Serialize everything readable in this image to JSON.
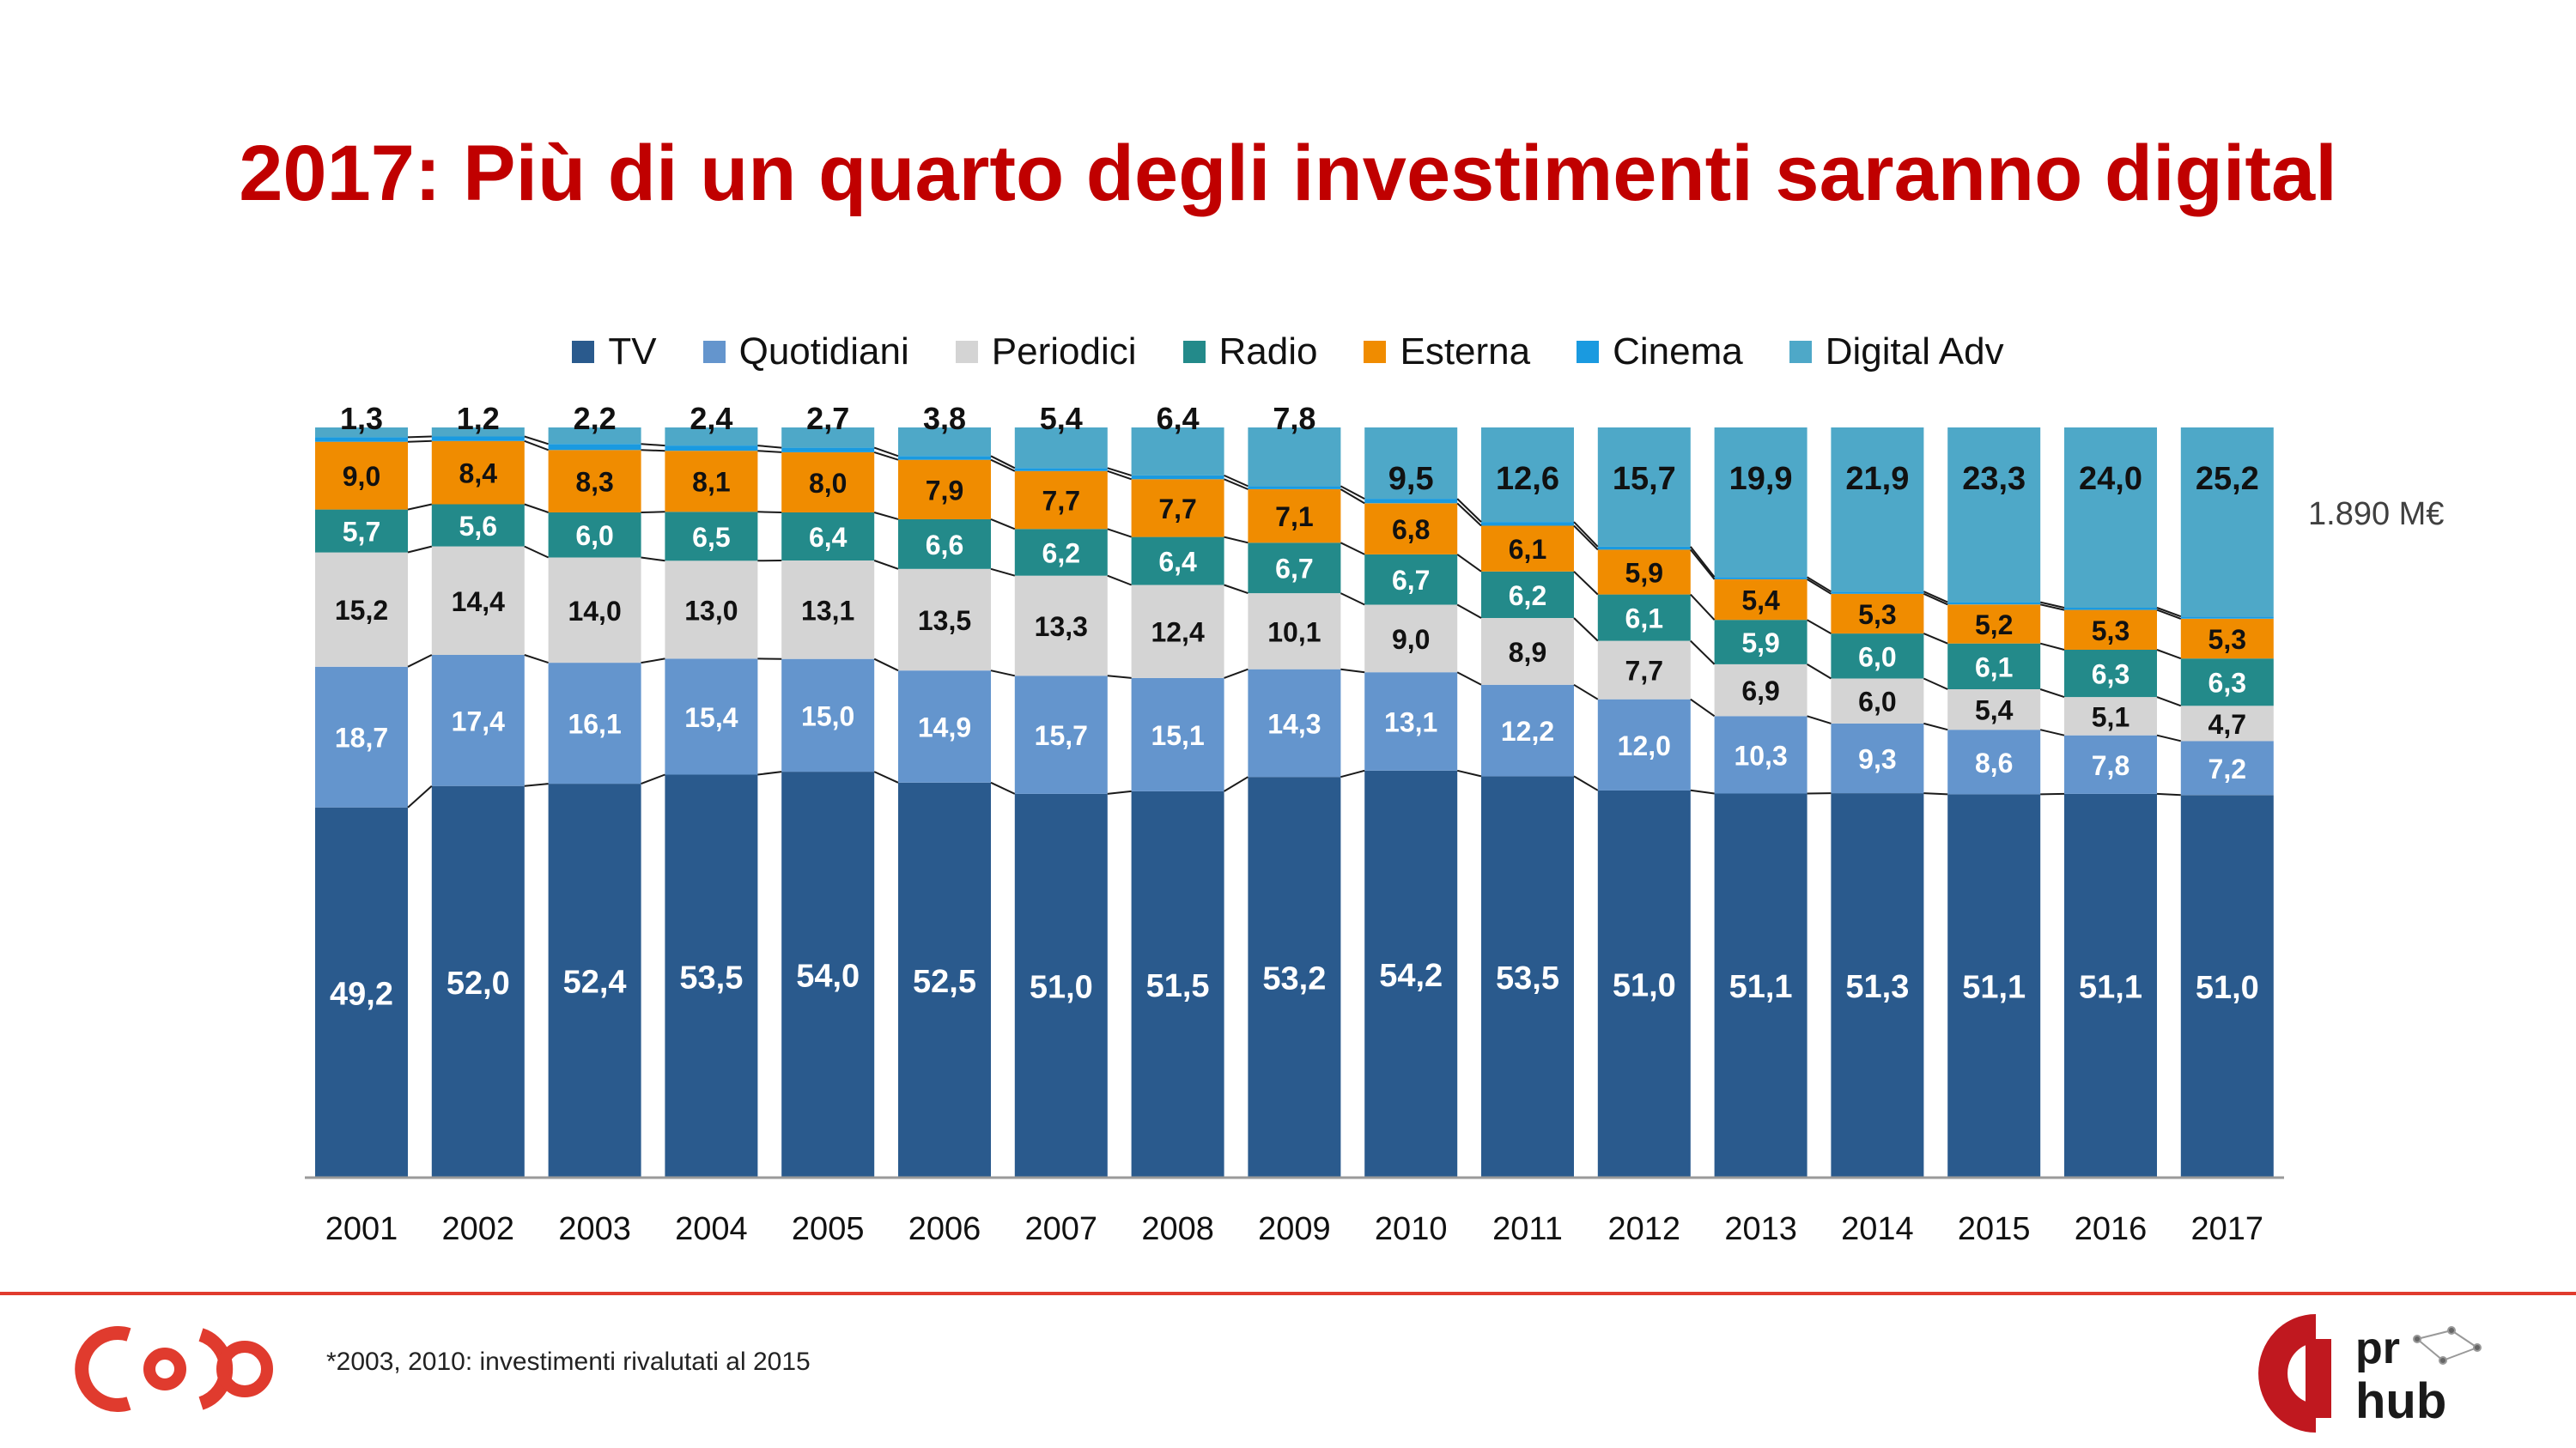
{
  "title": "2017: Più di un quarto degli investimenti saranno digital",
  "total_label": "1.890 M€",
  "footnote": "*2003, 2010: investimenti rivalutati al 2015",
  "logos": {
    "right_top": "pr",
    "right_bottom": "hub"
  },
  "chart_data": {
    "type": "bar",
    "stacked": true,
    "categories": [
      "2001",
      "2002",
      "2003",
      "2004",
      "2005",
      "2006",
      "2007",
      "2008",
      "2009",
      "2010",
      "2011",
      "2012",
      "2013",
      "2014",
      "2015",
      "2016",
      "2017"
    ],
    "ylim": [
      0,
      100
    ],
    "grid": false,
    "legend_position": "top-center",
    "series": [
      {
        "name": "TV",
        "color": "#2a5a8d",
        "label_color": "#ffffff",
        "labels": [
          "49,2",
          "52,0",
          "52,4",
          "53,5",
          "54,0",
          "52,5",
          "51,0",
          "51,5",
          "53,2",
          "54,2",
          "53,5",
          "51,0",
          "51,1",
          "51,3",
          "51,1",
          "51,1",
          "51,0"
        ],
        "values": [
          49.2,
          52.0,
          52.4,
          53.5,
          54.0,
          52.5,
          51.0,
          51.5,
          53.2,
          54.2,
          53.5,
          51.0,
          51.1,
          51.3,
          51.1,
          51.1,
          51.0
        ]
      },
      {
        "name": "Quotidiani",
        "color": "#6495cd",
        "label_color": "#ffffff",
        "labels": [
          "18,7",
          "17,4",
          "16,1",
          "15,4",
          "15,0",
          "14,9",
          "15,7",
          "15,1",
          "14,3",
          "13,1",
          "12,2",
          "12,0",
          "10,3",
          "9,3",
          "8,6",
          "7,8",
          "7,2"
        ],
        "values": [
          18.7,
          17.4,
          16.1,
          15.4,
          15.0,
          14.9,
          15.7,
          15.1,
          14.3,
          13.1,
          12.2,
          12.0,
          10.3,
          9.3,
          8.6,
          7.8,
          7.2
        ]
      },
      {
        "name": "Periodici",
        "color": "#d4d4d4",
        "label_color": "#111111",
        "labels": [
          "15,2",
          "14,4",
          "14,0",
          "13,0",
          "13,1",
          "13,5",
          "13,3",
          "12,4",
          "10,1",
          "9,0",
          "8,9",
          "7,7",
          "6,9",
          "6,0",
          "5,4",
          "5,1",
          "4,7"
        ],
        "values": [
          15.2,
          14.4,
          14.0,
          13.0,
          13.1,
          13.5,
          13.3,
          12.4,
          10.1,
          9.0,
          8.9,
          7.7,
          6.9,
          6.0,
          5.4,
          5.1,
          4.7
        ]
      },
      {
        "name": "Radio",
        "color": "#238a8a",
        "label_color": "#ffffff",
        "labels": [
          "5,7",
          "5,6",
          "6,0",
          "6,5",
          "6,4",
          "6,6",
          "6,2",
          "6,4",
          "6,7",
          "6,7",
          "6,2",
          "6,1",
          "5,9",
          "6,0",
          "6,1",
          "6,3",
          "6,3"
        ],
        "values": [
          5.7,
          5.6,
          6.0,
          6.5,
          6.4,
          6.6,
          6.2,
          6.4,
          6.7,
          6.7,
          6.2,
          6.1,
          5.9,
          6.0,
          6.1,
          6.3,
          6.3
        ]
      },
      {
        "name": "Esterna",
        "color": "#f08c00",
        "label_color": "#111111",
        "labels": [
          "9,0",
          "8,4",
          "8,3",
          "8,1",
          "8,0",
          "7,9",
          "7,7",
          "7,7",
          "7,1",
          "6,8",
          "6,1",
          "5,9",
          "5,4",
          "5,3",
          "5,2",
          "5,3",
          "5,3"
        ],
        "values": [
          9.0,
          8.4,
          8.3,
          8.1,
          8.0,
          7.9,
          7.7,
          7.7,
          7.1,
          6.8,
          6.1,
          5.9,
          5.4,
          5.3,
          5.2,
          5.3,
          5.3
        ]
      },
      {
        "name": "Cinema",
        "color": "#1a9ae0",
        "label_color": "#111111",
        "labels": [],
        "values": [
          0.6,
          0.6,
          0.8,
          0.7,
          0.6,
          0.5,
          0.4,
          0.5,
          0.4,
          0.6,
          0.5,
          0.4,
          0.3,
          0.3,
          0.3,
          0.3,
          0.3
        ]
      },
      {
        "name": "Digital Adv",
        "color": "#4ea8c8",
        "label_color": "#111111",
        "labels": [
          "1,3",
          "1,2",
          "2,2",
          "2,4",
          "2,7",
          "3,8",
          "5,4",
          "6,4",
          "7,8",
          "9,5",
          "12,6",
          "15,7",
          "19,9",
          "21,9",
          "23,3",
          "24,0",
          "25,2"
        ],
        "values": [
          1.3,
          1.2,
          2.2,
          2.4,
          2.7,
          3.8,
          5.4,
          6.4,
          7.8,
          9.5,
          12.6,
          15.7,
          19.9,
          21.9,
          23.3,
          24.0,
          25.2
        ]
      }
    ]
  }
}
